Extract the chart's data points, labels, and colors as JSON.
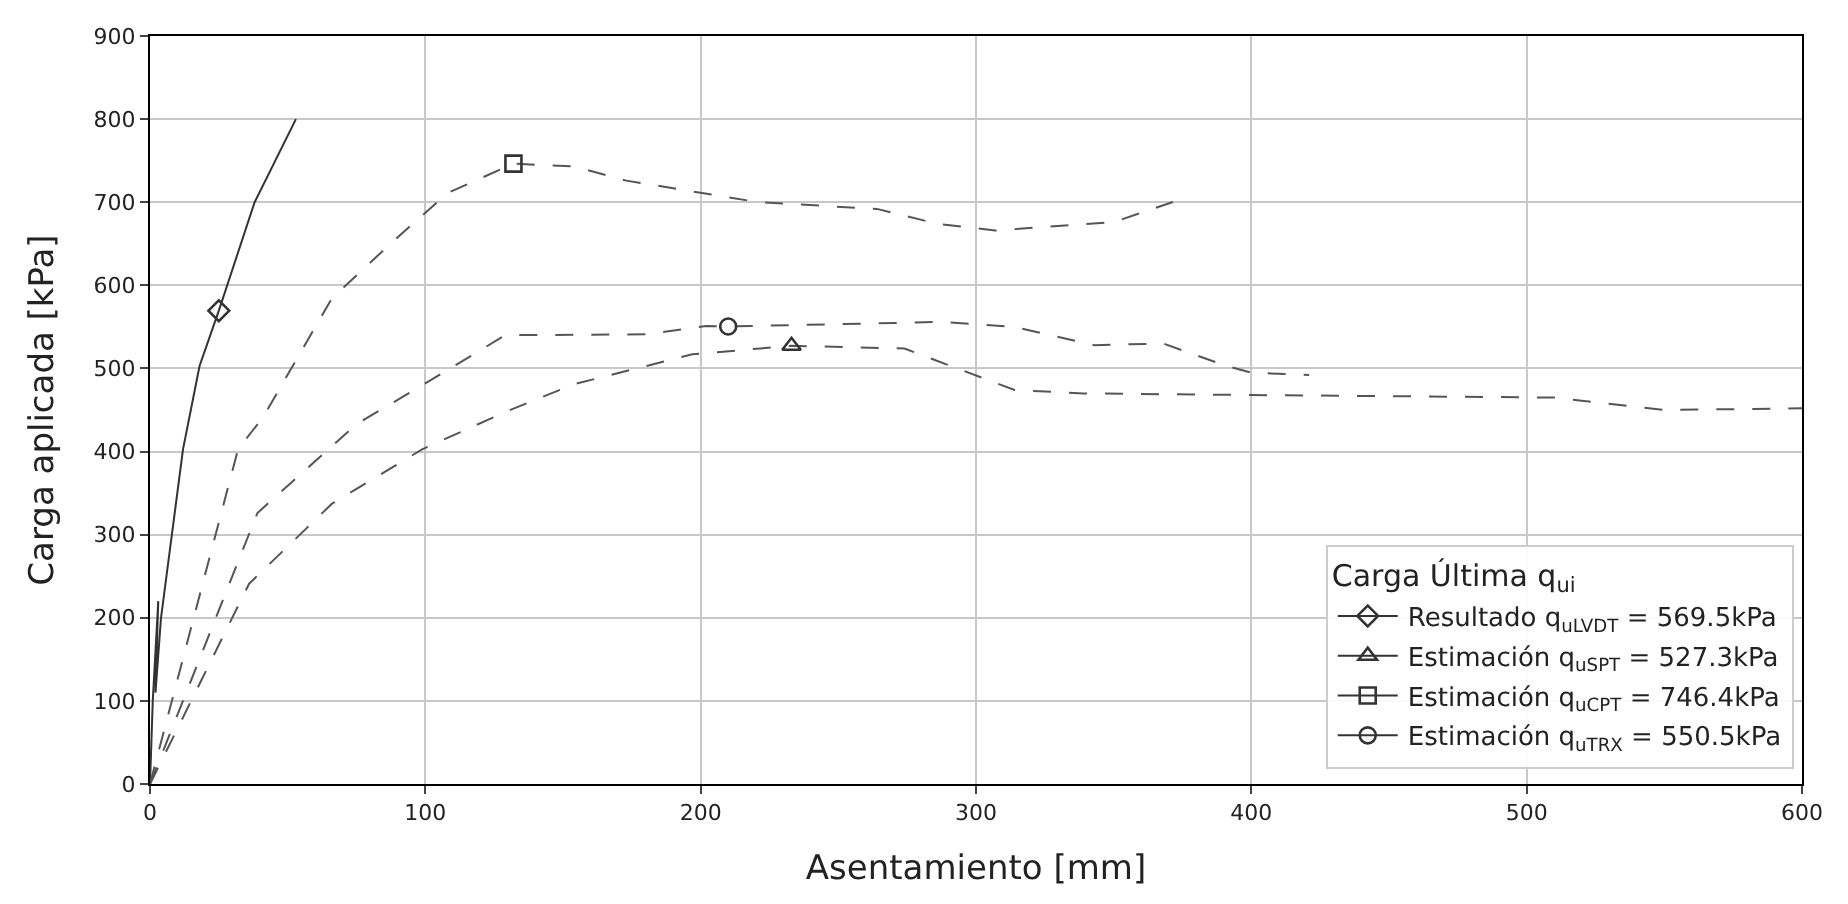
{
  "chart_data": {
    "type": "line",
    "xlabel": "Asentamiento [mm]",
    "ylabel": "Carga aplicada [kPa]",
    "legend_title": "Carga Última q$_{ui}$",
    "xlim": [
      0,
      600
    ],
    "ylim": [
      0,
      900
    ],
    "xticks": [
      0,
      100,
      200,
      300,
      400,
      500,
      600
    ],
    "yticks": [
      0,
      100,
      200,
      300,
      400,
      500,
      600,
      700,
      800,
      900
    ],
    "grid": true,
    "legend": "bottom right",
    "series": [
      {
        "color": "#333333",
        "line_style": "solid",
        "marker": "none",
        "x": [
          0,
          1,
          3,
          2,
          4,
          12,
          18,
          25,
          38,
          53
        ],
        "values": [
          0,
          100,
          220,
          110,
          200,
          403,
          503,
          569.5,
          700,
          800
        ]
      },
      {
        "color": "#555555",
        "line_style": "dashed",
        "marker": "none",
        "x": [
          0,
          36,
          66,
          99,
          130,
          154,
          197,
          233,
          274,
          314,
          339,
          400,
          510,
          550,
          600
        ],
        "values": [
          0,
          241,
          337,
          403,
          449,
          481,
          517,
          527.3,
          524,
          474,
          470,
          468,
          465,
          450,
          452
        ]
      },
      {
        "color": "#555555",
        "line_style": "dashed",
        "marker": "none",
        "x": [
          0,
          32,
          41,
          66,
          87,
          108,
          132,
          154,
          173,
          221,
          264,
          286,
          307,
          350,
          373
        ],
        "values": [
          0,
          403,
          441,
          584,
          649,
          711,
          746.4,
          743,
          726,
          700,
          692,
          674,
          666,
          676,
          702
        ]
      },
      {
        "color": "#555555",
        "line_style": "dashed",
        "marker": "none",
        "x": [
          0,
          39,
          75,
          99,
          129,
          180,
          202,
          210,
          288,
          314,
          343,
          368,
          391,
          400,
          421
        ],
        "values": [
          0,
          326,
          433,
          480,
          540,
          541,
          551,
          550.5,
          556,
          550,
          528,
          530,
          503,
          495,
          492
        ]
      },
      {
        "type": "scatter",
        "name": "Resultado q$_{uLVDT}$ = 569.5kPa",
        "color": "#333333",
        "marker": "diamond",
        "x": [
          25
        ],
        "values": [
          569.5
        ]
      },
      {
        "type": "scatter",
        "name": "Estimación q$_{uSPT}$ = 527.3kPa",
        "color": "#333333",
        "marker": "triangle",
        "x": [
          233
        ],
        "values": [
          527.3
        ]
      },
      {
        "type": "scatter",
        "name": "Estimación q$_{uCPT}$ = 746.4kPa",
        "color": "#333333",
        "marker": "square",
        "x": [
          132
        ],
        "values": [
          746.4
        ]
      },
      {
        "type": "scatter",
        "name": "Estimación q$_{uTRX}$ = 550.5kPa",
        "color": "#333333",
        "marker": "circle",
        "x": [
          210
        ],
        "values": [
          550.5
        ]
      }
    ]
  }
}
